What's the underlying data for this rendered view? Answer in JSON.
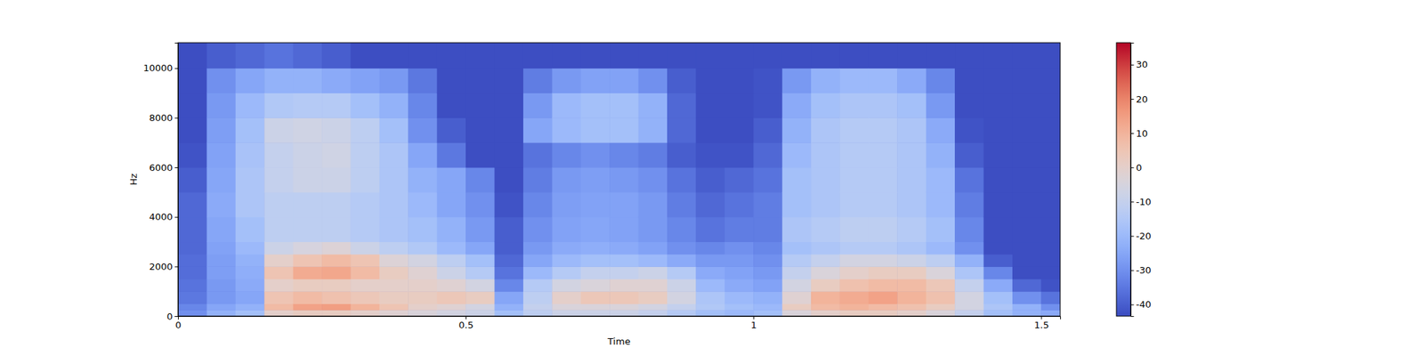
{
  "chart_data": {
    "type": "heatmap",
    "xlabel": "Time",
    "ylabel": "Hz",
    "xlim": [
      0,
      1.533
    ],
    "ylim": [
      0,
      11025
    ],
    "xticks": [
      0,
      0.5,
      1,
      1.5
    ],
    "yticks": [
      0,
      2000,
      4000,
      6000,
      8000,
      10000
    ],
    "x_edges": [
      0,
      0.05,
      0.1,
      0.15,
      0.2,
      0.25,
      0.3,
      0.35,
      0.4,
      0.45,
      0.5,
      0.55,
      0.6,
      0.65,
      0.7,
      0.75,
      0.8,
      0.85,
      0.9,
      0.95,
      1.0,
      1.05,
      1.1,
      1.15,
      1.2,
      1.25,
      1.3,
      1.35,
      1.4,
      1.45,
      1.5,
      1.533
    ],
    "y_edges": [
      0,
      250,
      500,
      1000,
      1500,
      2000,
      2500,
      3000,
      4000,
      5000,
      6000,
      7000,
      8000,
      9000,
      10000,
      11025
    ],
    "values": [
      [
        -30,
        -32,
        -35,
        -36,
        -37,
        -37,
        -38,
        -38,
        -38,
        -40,
        -42,
        -43,
        -43,
        -43,
        -43
      ],
      [
        -22,
        -25,
        -28,
        -28,
        -27,
        -27,
        -26,
        -25,
        -24,
        -25,
        -26,
        -27,
        -28,
        -30,
        -40
      ],
      [
        -18,
        -22,
        -25,
        -24,
        -23,
        -22,
        -20,
        -18,
        -16,
        -16,
        -17,
        -18,
        -20,
        -25,
        -38
      ],
      [
        0,
        8,
        5,
        0,
        5,
        0,
        -8,
        -12,
        -12,
        -10,
        -10,
        -8,
        -15,
        -22,
        -36
      ],
      [
        2,
        14,
        8,
        2,
        12,
        5,
        -5,
        -12,
        -12,
        -8,
        -8,
        -7,
        -14,
        -22,
        -38
      ],
      [
        2,
        15,
        6,
        2,
        13,
        8,
        -3,
        -12,
        -12,
        -8,
        -7,
        -8,
        -14,
        -24,
        -40
      ],
      [
        0,
        10,
        4,
        0,
        8,
        5,
        -8,
        -14,
        -14,
        -12,
        -12,
        -12,
        -18,
        -26,
        -43
      ],
      [
        -2,
        5,
        2,
        0,
        2,
        -3,
        -12,
        -16,
        -16,
        -16,
        -16,
        -18,
        -22,
        -28,
        -43
      ],
      [
        -4,
        0,
        2,
        0,
        -2,
        -6,
        -15,
        -18,
        -20,
        -22,
        -25,
        -30,
        -32,
        -35,
        -43
      ],
      [
        -6,
        -2,
        4,
        -2,
        -8,
        -12,
        -20,
        -22,
        -25,
        -25,
        -35,
        -40,
        -43,
        -43,
        -43
      ],
      [
        -8,
        -6,
        2,
        -6,
        -14,
        -18,
        -25,
        -28,
        -30,
        -32,
        -43,
        -43,
        -43,
        -43,
        -43
      ],
      [
        -18,
        -22,
        -25,
        -32,
        -36,
        -38,
        -40,
        -40,
        -42,
        -43,
        -43,
        -43,
        -43,
        -43,
        -43
      ],
      [
        -12,
        -10,
        -12,
        -14,
        -20,
        -25,
        -28,
        -30,
        -32,
        -34,
        -36,
        -25,
        -28,
        -34,
        -43
      ],
      [
        -8,
        -4,
        0,
        -6,
        -14,
        -20,
        -24,
        -26,
        -27,
        -28,
        -32,
        -20,
        -20,
        -28,
        -43
      ],
      [
        -8,
        -4,
        4,
        -4,
        -10,
        -18,
        -23,
        -25,
        -26,
        -27,
        -30,
        -18,
        -18,
        -26,
        -43
      ],
      [
        -8,
        -4,
        4,
        -2,
        -10,
        -18,
        -24,
        -26,
        -26,
        -28,
        -32,
        -18,
        -18,
        -26,
        -43
      ],
      [
        -10,
        -6,
        2,
        -2,
        -8,
        -20,
        -26,
        -28,
        -28,
        -30,
        -34,
        -22,
        -22,
        -30,
        -43
      ],
      [
        -14,
        -10,
        -6,
        -8,
        -14,
        -24,
        -30,
        -32,
        -34,
        -36,
        -40,
        -38,
        -38,
        -40,
        -43
      ],
      [
        -18,
        -15,
        -16,
        -20,
        -24,
        -28,
        -32,
        -36,
        -38,
        -40,
        -42,
        -43,
        -43,
        -43,
        -43
      ],
      [
        -20,
        -18,
        -20,
        -24,
        -26,
        -28,
        -30,
        -34,
        -36,
        -38,
        -42,
        -43,
        -43,
        -43,
        -43
      ],
      [
        -18,
        -20,
        -22,
        -26,
        -28,
        -30,
        -32,
        -34,
        -34,
        -36,
        -38,
        -40,
        -42,
        -42,
        -43
      ],
      [
        -4,
        2,
        -2,
        -6,
        -10,
        -14,
        -18,
        -16,
        -18,
        -18,
        -20,
        -22,
        -24,
        -28,
        -43
      ],
      [
        0,
        8,
        10,
        2,
        -4,
        -10,
        -16,
        -14,
        -16,
        -16,
        -16,
        -16,
        -18,
        -22,
        -43
      ],
      [
        2,
        10,
        12,
        6,
        0,
        -6,
        -14,
        -12,
        -14,
        -14,
        -14,
        -14,
        -16,
        -20,
        -43
      ],
      [
        2,
        8,
        14,
        8,
        2,
        -6,
        -14,
        -12,
        -14,
        -14,
        -14,
        -14,
        -16,
        -20,
        -43
      ],
      [
        0,
        6,
        10,
        8,
        2,
        -8,
        -16,
        -14,
        -16,
        -16,
        -16,
        -16,
        -18,
        -24,
        -43
      ],
      [
        -4,
        2,
        6,
        4,
        -4,
        -12,
        -20,
        -18,
        -20,
        -20,
        -22,
        -24,
        -28,
        -32,
        -43
      ],
      [
        -10,
        -6,
        -6,
        -10,
        -16,
        -22,
        -30,
        -32,
        -34,
        -36,
        -40,
        -42,
        -43,
        -43,
        -43
      ],
      [
        -18,
        -16,
        -18,
        -24,
        -32,
        -40,
        -43,
        -43,
        -43,
        -43,
        -43,
        -43,
        -43,
        -43,
        -43
      ],
      [
        -22,
        -22,
        -30,
        -38,
        -43,
        -43,
        -43,
        -43,
        -43,
        -43,
        -43,
        -43,
        -43,
        -43,
        -43
      ],
      [
        -24,
        -30,
        -36,
        -42,
        -43,
        -43,
        -43,
        -43,
        -43,
        -43,
        -43,
        -43,
        -43,
        -43,
        -43
      ]
    ],
    "colorbar": {
      "range": [
        -43.4,
        36.4
      ],
      "ticks": [
        -40,
        -30,
        -20,
        -10,
        0,
        10,
        20,
        30
      ]
    }
  }
}
